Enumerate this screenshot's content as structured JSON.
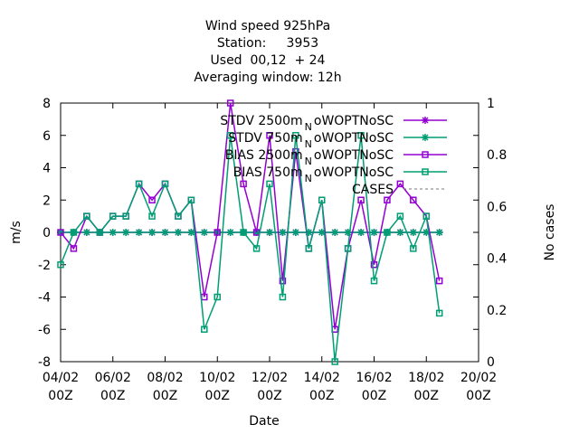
{
  "chart_data": {
    "type": "line",
    "title_lines": [
      "Wind speed 925hPa",
      "Station:     3953",
      "Used  00,12  + 24",
      "Averaging window: 12h"
    ],
    "xlabel": "Date",
    "ylabel": "m/s",
    "y2label": "No cases",
    "x_start": "04/02 00Z",
    "x_ticks": [
      {
        "day": 0,
        "line1": "04/02",
        "line2": "00Z"
      },
      {
        "day": 2,
        "line1": "06/02",
        "line2": "00Z"
      },
      {
        "day": 4,
        "line1": "08/02",
        "line2": "00Z"
      },
      {
        "day": 6,
        "line1": "10/02",
        "line2": "00Z"
      },
      {
        "day": 8,
        "line1": "12/02",
        "line2": "00Z"
      },
      {
        "day": 10,
        "line1": "14/02",
        "line2": "00Z"
      },
      {
        "day": 12,
        "line1": "16/02",
        "line2": "00Z"
      },
      {
        "day": 14,
        "line1": "18/02",
        "line2": "00Z"
      },
      {
        "day": 16,
        "line1": "20/02",
        "line2": "00Z"
      }
    ],
    "xlim_days": [
      0,
      16
    ],
    "ylim": [
      -8,
      8
    ],
    "y_ticks": [
      -8,
      -6,
      -4,
      -2,
      0,
      2,
      4,
      6,
      8
    ],
    "y2lim": [
      0,
      1
    ],
    "y2_ticks": [
      0,
      0.2,
      0.4,
      0.6,
      0.8,
      1
    ],
    "legend_position": "top-right",
    "grid": false,
    "x_days": [
      0,
      0.5,
      1,
      1.5,
      2,
      2.5,
      3,
      3.5,
      4,
      4.5,
      5,
      5.5,
      6,
      6.5,
      7,
      7.5,
      8,
      8.5,
      9,
      9.5,
      10,
      10.5,
      11,
      11.5,
      12,
      12.5,
      13,
      13.5,
      14,
      14.5
    ],
    "series": [
      {
        "name": "STDV 2500m",
        "color": "#9400d3",
        "marker": "star",
        "values": [
          0,
          0,
          0,
          0,
          0,
          0,
          0,
          0,
          0,
          0,
          0,
          0,
          0,
          0,
          0,
          0,
          0,
          0,
          0,
          0,
          0,
          0,
          0,
          0,
          0,
          0,
          0,
          0,
          0,
          0
        ]
      },
      {
        "name": "STDV 750m",
        "color": "#009e73",
        "marker": "star",
        "values": [
          0,
          0,
          0,
          0,
          0,
          0,
          0,
          0,
          0,
          0,
          0,
          0,
          0,
          0,
          0,
          0,
          0,
          0,
          0,
          0,
          0,
          0,
          0,
          0,
          0,
          0,
          0,
          0,
          0,
          0
        ]
      },
      {
        "name": "BIAS 2500m",
        "color": "#9400d3",
        "marker": "square",
        "values": [
          0,
          -1,
          1,
          0,
          1,
          1,
          3,
          2,
          3,
          1,
          2,
          -4,
          0,
          8,
          3,
          0,
          6,
          -3,
          5,
          -1,
          2,
          -6,
          -1,
          2,
          -2,
          2,
          3,
          2,
          1,
          -3
        ]
      },
      {
        "name": "BIAS 750m",
        "color": "#009e73",
        "marker": "square",
        "values": [
          -2,
          0,
          1,
          0,
          1,
          1,
          3,
          1,
          3,
          1,
          2,
          -6,
          -4,
          6,
          0,
          -1,
          3,
          -4,
          6,
          -1,
          2,
          -8,
          -1,
          6,
          -3,
          0,
          1,
          -1,
          1,
          -5
        ]
      }
    ],
    "legend": [
      {
        "label": "STDV 2500m",
        "sub": "N",
        "suffix": "oWOPTNoSC",
        "color": "#9400d3",
        "marker": "star",
        "dash": false
      },
      {
        "label": "STDV 750m",
        "sub": "N",
        "suffix": "oWOPTNoSC",
        "color": "#009e73",
        "marker": "star",
        "dash": false
      },
      {
        "label": "BIAS 2500m",
        "sub": "N",
        "suffix": "oWOPTNoSC",
        "color": "#9400d3",
        "marker": "square",
        "dash": false
      },
      {
        "label": "BIAS 750m",
        "sub": "N",
        "suffix": "oWOPTNoSC",
        "color": "#009e73",
        "marker": "square",
        "dash": false
      },
      {
        "label": "CASES",
        "sub": "",
        "suffix": "",
        "color": "#777777",
        "marker": "none",
        "dash": true
      }
    ]
  }
}
